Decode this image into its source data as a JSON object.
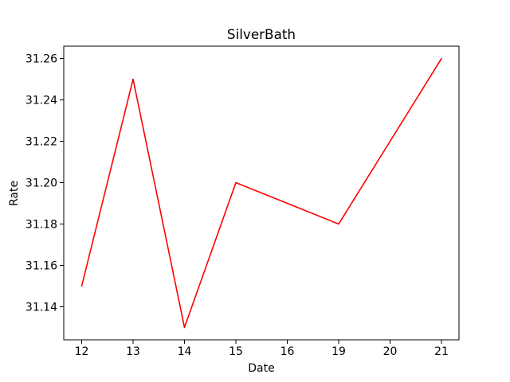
{
  "chart_data": {
    "type": "line",
    "title": "SilverBath",
    "xlabel": "Date",
    "ylabel": "Rate",
    "categories": [
      "12",
      "13",
      "14",
      "15",
      "16",
      "19",
      "20",
      "21"
    ],
    "series": [
      {
        "x": [
          "12",
          "13",
          "14",
          "15",
          "19",
          "21"
        ],
        "values": [
          31.15,
          31.25,
          31.13,
          31.2,
          31.18,
          31.26
        ],
        "color": "#ff0000"
      }
    ],
    "yticks": [
      31.14,
      31.16,
      31.18,
      31.2,
      31.22,
      31.24,
      31.26
    ],
    "ytick_labels": [
      "31.14",
      "31.16",
      "31.18",
      "31.20",
      "31.22",
      "31.24",
      "31.26"
    ],
    "ylim": [
      31.124,
      31.266
    ],
    "grid": false,
    "legend": "none"
  }
}
